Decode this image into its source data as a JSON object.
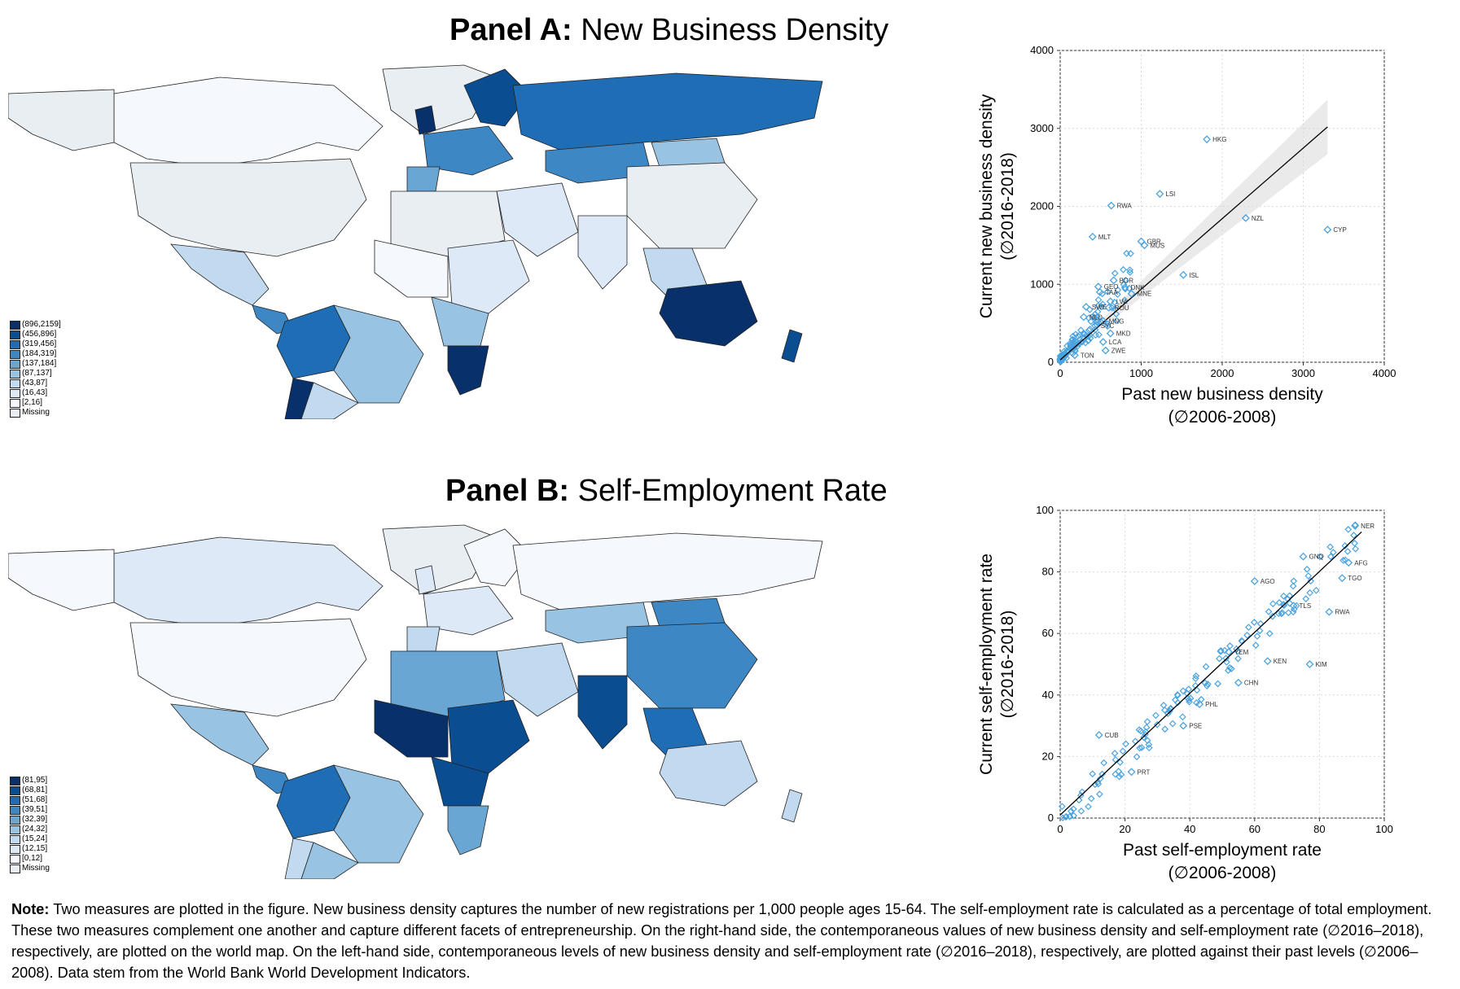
{
  "panels": [
    {
      "title_bold": "Panel A:",
      "title_rest": "New Business Density",
      "legend": [
        {
          "label": "(896,2159]",
          "color": "#08306b"
        },
        {
          "label": "(456,896]",
          "color": "#0b4d91"
        },
        {
          "label": "(319,456]",
          "color": "#1f6db4"
        },
        {
          "label": "(184,319]",
          "color": "#3d87c5"
        },
        {
          "label": "(137,184]",
          "color": "#6aa6d4"
        },
        {
          "label": "(87,137]",
          "color": "#98c3e2"
        },
        {
          "label": "(43,87]",
          "color": "#c2daef"
        },
        {
          "label": "(16,43]",
          "color": "#dde9f6"
        },
        {
          "label": "[2,16]",
          "color": "#f5f9fd"
        },
        {
          "label": "Missing",
          "color": "#e9eef2"
        }
      ]
    },
    {
      "title_bold": "Panel B:",
      "title_rest": "Self-Employment Rate",
      "legend": [
        {
          "label": "(81,95]",
          "color": "#08306b"
        },
        {
          "label": "(68,81]",
          "color": "#0b4d91"
        },
        {
          "label": "(51,68]",
          "color": "#1f6db4"
        },
        {
          "label": "(39,51]",
          "color": "#3d87c5"
        },
        {
          "label": "(32,39]",
          "color": "#6aa6d4"
        },
        {
          "label": "(24,32]",
          "color": "#98c3e2"
        },
        {
          "label": "(15,24]",
          "color": "#c2daef"
        },
        {
          "label": "(12,15]",
          "color": "#dde9f6"
        },
        {
          "label": "[0,12]",
          "color": "#f5f9fd"
        },
        {
          "label": "Missing",
          "color": "#e9eef2"
        }
      ]
    }
  ],
  "chart_data": [
    {
      "type": "scatter",
      "xlabel": "Past new business density",
      "xlabel2": "(∅2006-2008)",
      "ylabel": "Current new business density",
      "ylabel2": "(∅2016-2018)",
      "xlim": [
        0,
        4000
      ],
      "ylim": [
        0,
        4000
      ],
      "xticks": [
        0,
        1000,
        2000,
        3000,
        4000
      ],
      "yticks": [
        0,
        1000,
        2000,
        3000,
        4000
      ],
      "grid": true,
      "fit_line": {
        "x": [
          0,
          3300
        ],
        "y": [
          30,
          3020
        ]
      },
      "marker_color": "#4aa3df",
      "labeled_points": [
        {
          "label": "HKG",
          "x": 1810,
          "y": 2860
        },
        {
          "label": "LSI",
          "x": 1230,
          "y": 2160
        },
        {
          "label": "RWA",
          "x": 630,
          "y": 2010
        },
        {
          "label": "NZL",
          "x": 2290,
          "y": 1850
        },
        {
          "label": "CYP",
          "x": 3300,
          "y": 1700
        },
        {
          "label": "MLT",
          "x": 400,
          "y": 1610
        },
        {
          "label": "GBR",
          "x": 1000,
          "y": 1550
        },
        {
          "label": "MUS",
          "x": 1040,
          "y": 1500
        },
        {
          "label": "ISL",
          "x": 1520,
          "y": 1120
        },
        {
          "label": "BGR",
          "x": 660,
          "y": 1050
        },
        {
          "label": "GEO",
          "x": 470,
          "y": 970
        },
        {
          "label": "TAA",
          "x": 490,
          "y": 900
        },
        {
          "label": "DNK",
          "x": 800,
          "y": 960
        },
        {
          "label": "MNE",
          "x": 880,
          "y": 880
        },
        {
          "label": "LVA",
          "x": 620,
          "y": 780
        },
        {
          "label": "ROU",
          "x": 600,
          "y": 700
        },
        {
          "label": "SWE",
          "x": 320,
          "y": 710
        },
        {
          "label": "NLD",
          "x": 290,
          "y": 580
        },
        {
          "label": "MNG",
          "x": 530,
          "y": 530
        },
        {
          "label": "SYC",
          "x": 430,
          "y": 470
        },
        {
          "label": "MKD",
          "x": 620,
          "y": 370
        },
        {
          "label": "LCA",
          "x": 530,
          "y": 260
        },
        {
          "label": "ZWE",
          "x": 560,
          "y": 150
        },
        {
          "label": "TON",
          "x": 180,
          "y": 90
        }
      ]
    },
    {
      "type": "scatter",
      "xlabel": "Past self-employment rate",
      "xlabel2": "(∅2006-2008)",
      "ylabel": "Current self-employment rate",
      "ylabel2": "(∅2016-2018)",
      "xlim": [
        0,
        100
      ],
      "ylim": [
        0,
        100
      ],
      "xticks": [
        0,
        20,
        40,
        60,
        80,
        100
      ],
      "yticks": [
        0,
        20,
        40,
        60,
        80,
        100
      ],
      "grid": true,
      "fit_line": {
        "x": [
          0,
          93
        ],
        "y": [
          1,
          93
        ]
      },
      "marker_color": "#4aa3df",
      "labeled_points": [
        {
          "label": "NER",
          "x": 91,
          "y": 95
        },
        {
          "label": "GNQ",
          "x": 75,
          "y": 85
        },
        {
          "label": "AFG",
          "x": 89,
          "y": 83
        },
        {
          "label": "AGO",
          "x": 60,
          "y": 77
        },
        {
          "label": "TGO",
          "x": 87,
          "y": 78
        },
        {
          "label": "RWA",
          "x": 83,
          "y": 67
        },
        {
          "label": "TLS",
          "x": 72,
          "y": 69
        },
        {
          "label": "YEM",
          "x": 52,
          "y": 54
        },
        {
          "label": "KIM",
          "x": 77,
          "y": 50
        },
        {
          "label": "KEN",
          "x": 64,
          "y": 51
        },
        {
          "label": "CHN",
          "x": 55,
          "y": 44
        },
        {
          "label": "PHL",
          "x": 43,
          "y": 37
        },
        {
          "label": "PSE",
          "x": 38,
          "y": 30
        },
        {
          "label": "CUB",
          "x": 12,
          "y": 27
        },
        {
          "label": "PRT",
          "x": 22,
          "y": 15
        }
      ]
    }
  ],
  "note": {
    "bold": "Note:",
    "text": "Two measures are plotted in the figure. New business density captures the number of new registrations per 1,000 people ages 15-64. The self-employment rate is calculated as a percentage of total employment. These two measures complement one another and capture different facets of entrepreneurship. On the right-hand side, the contemporaneous values of new business density and self-employment rate (∅2016–2018), respectively, are plotted on the world map. On the left-hand side, contemporaneous levels of new business density and self-employment rate (∅2016–2018), respectively, are plotted against their past levels (∅2006–2008). Data stem from the World Bank World Development Indicators."
  }
}
